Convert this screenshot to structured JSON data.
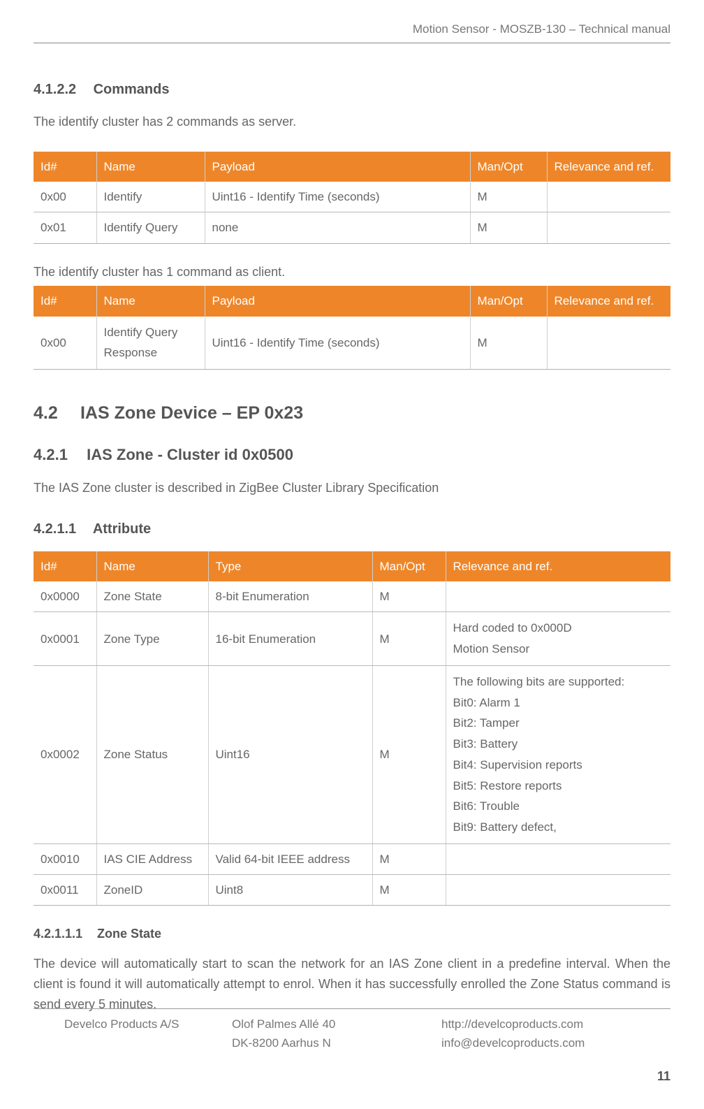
{
  "colors": {
    "table_header_bg": "#ee8629",
    "table_header_fg": "#ffffff",
    "border": "#b9b9b9",
    "text": "#666666",
    "heading": "#555555"
  },
  "running_header": "Motion Sensor - MOSZB-130 – Technical manual",
  "s1": {
    "num": "4.1.2.2",
    "title": "Commands",
    "intro": "The identify cluster has 2 commands as server."
  },
  "t1": {
    "col_widths": [
      "90px",
      "155px",
      "380px",
      "110px",
      "auto"
    ],
    "headers": [
      "Id#",
      "Name",
      "Payload",
      "Man/Opt",
      "Relevance and ref."
    ],
    "rows": [
      [
        "0x00",
        "Identify",
        "Uint16 - Identify Time (seconds)",
        "M",
        ""
      ],
      [
        "0x01",
        "Identify Query",
        "none",
        "M",
        ""
      ]
    ]
  },
  "s1b": "The identify cluster has 1 command as client.",
  "t2": {
    "col_widths": [
      "90px",
      "155px",
      "380px",
      "110px",
      "auto"
    ],
    "headers": [
      "Id#",
      "Name",
      "Payload",
      "Man/Opt",
      "Relevance and ref."
    ],
    "rows": [
      [
        "0x00",
        "Identify Query\nResponse",
        "Uint16 - Identify Time (seconds)",
        "M",
        ""
      ]
    ]
  },
  "s2": {
    "num": "4.2",
    "title": "IAS Zone Device – EP 0x23"
  },
  "s3": {
    "num": "4.2.1",
    "title": "IAS Zone  - Cluster id 0x0500",
    "intro": "The IAS Zone cluster is described in ZigBee Cluster Library Specification"
  },
  "s4": {
    "num": "4.2.1.1",
    "title": "Attribute"
  },
  "t3": {
    "col_widths": [
      "90px",
      "160px",
      "235px",
      "105px",
      "auto"
    ],
    "headers": [
      "Id#",
      "Name",
      "Type",
      "Man/Opt",
      "Relevance and ref."
    ],
    "rows": [
      [
        "0x0000",
        "Zone State",
        "8-bit Enumeration",
        "M",
        ""
      ],
      [
        "0x0001",
        "Zone Type",
        "16-bit Enumeration",
        "M",
        "Hard coded to 0x000D\nMotion Sensor"
      ],
      [
        "0x0002",
        "Zone Status",
        "Uint16",
        "M",
        "The following bits are supported:\nBit0: Alarm 1\nBit2: Tamper\nBit3: Battery\nBit4: Supervision reports\nBit5: Restore reports\nBit6: Trouble\nBit9: Battery defect,"
      ],
      [
        "0x0010",
        "IAS CIE Address",
        "Valid 64-bit IEEE address",
        "M",
        ""
      ],
      [
        "0x0011",
        "ZoneID",
        "Uint8",
        "M",
        ""
      ]
    ]
  },
  "s5": {
    "num": "4.2.1.1.1",
    "title": "Zone State",
    "body": "The device will automatically start to scan the network for an IAS Zone client in a predefine interval. When the client is found it will automatically attempt to enrol. When it has successfully enrolled the Zone Status command is send every 5 minutes."
  },
  "footer": {
    "company": "Develco Products A/S",
    "addr1": "Olof Palmes Allé 40",
    "addr2": "DK-8200 Aarhus N",
    "url": "http://develcoproducts.com",
    "email": "info@develcoproducts.com"
  },
  "page_number": "11"
}
